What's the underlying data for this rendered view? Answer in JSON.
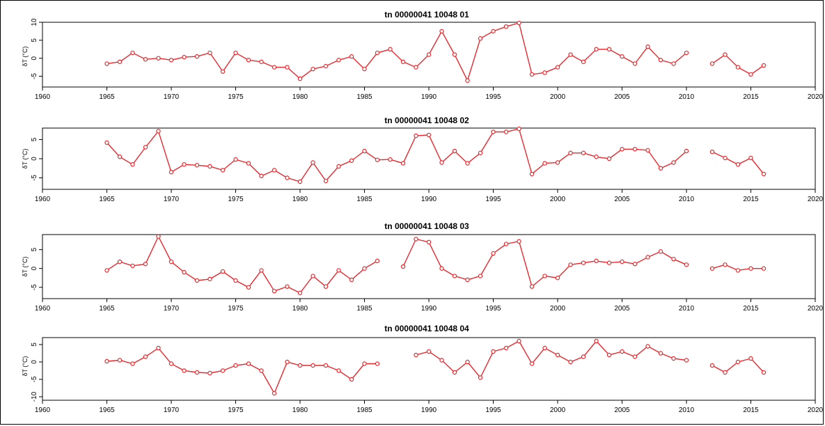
{
  "chart_data": [
    {
      "type": "line",
      "title": "tn 00000041 10048 01",
      "ylabel": "δT (°C)",
      "xlim": [
        1960,
        2020
      ],
      "ylim": [
        -8,
        10
      ],
      "xticks": [
        "1960",
        "1965",
        "1970",
        "1975",
        "1980",
        "1985",
        "1990",
        "1995",
        "2000",
        "2005",
        "2010",
        "2015",
        "2020"
      ],
      "yticks": [
        "-5",
        "0",
        "5",
        "10"
      ],
      "series": [
        {
          "x": [
            1965,
            1966,
            1967,
            1968,
            1969,
            1970,
            1971,
            1972,
            1973,
            1974,
            1975,
            1976,
            1977,
            1978,
            1979,
            1980,
            1981,
            1982,
            1983,
            1984,
            1985,
            1986,
            1987,
            1988,
            1989,
            1990,
            1991,
            1992,
            1993,
            1994,
            1995,
            1996,
            1997,
            1998,
            1999,
            2000,
            2001,
            2002,
            2003,
            2004,
            2005,
            2006,
            2007,
            2008,
            2009,
            2010
          ],
          "y": [
            -1.5,
            -1,
            1.5,
            -0.3,
            0,
            -0.5,
            0.3,
            0.5,
            1.5,
            -3.7,
            1.5,
            -0.5,
            -1,
            -2.5,
            -2.5,
            -5.7,
            -3,
            -2.2,
            -0.5,
            0.5,
            -3,
            1.5,
            2.5,
            -1,
            -2.5,
            1,
            7.5,
            1,
            -6.2,
            5.5,
            7.5,
            8.8,
            9.8,
            -4.5,
            -4,
            -2.5,
            1,
            -1,
            2.5,
            2.5,
            0.5,
            -1.5,
            3.2,
            -0.5,
            -1.5,
            1.5
          ]
        },
        {
          "x": [
            2012,
            2013,
            2014,
            2015,
            2016
          ],
          "y": [
            -1.5,
            1,
            -2.5,
            -4.5,
            -2
          ]
        }
      ]
    },
    {
      "type": "line",
      "title": "tn 00000041 10048 02",
      "ylabel": "δT (°C)",
      "xlim": [
        1960,
        2020
      ],
      "ylim": [
        -8,
        8
      ],
      "xticks": [
        "1960",
        "1965",
        "1970",
        "1975",
        "1980",
        "1985",
        "1990",
        "1995",
        "2000",
        "2005",
        "2010",
        "2015",
        "2020"
      ],
      "yticks": [
        "-5",
        "0",
        "5"
      ],
      "series": [
        {
          "x": [
            1965,
            1966,
            1967,
            1968,
            1969,
            1970,
            1971,
            1972,
            1973,
            1974,
            1975,
            1976,
            1977,
            1978,
            1979,
            1980,
            1981,
            1982,
            1983,
            1984,
            1985,
            1986,
            1987,
            1988,
            1989,
            1990,
            1991,
            1992,
            1993,
            1994,
            1995,
            1996,
            1997,
            1998,
            1999,
            2000,
            2001,
            2002,
            2003,
            2004,
            2005,
            2006,
            2007,
            2008,
            2009,
            2010
          ],
          "y": [
            4.2,
            0.5,
            -1.5,
            3,
            7.2,
            -3.5,
            -1.5,
            -1.7,
            -2,
            -3,
            -0.2,
            -1.2,
            -4.5,
            -3,
            -5,
            -6,
            -1,
            -5.8,
            -2,
            -0.5,
            2,
            -0.3,
            -0.2,
            -1.2,
            6,
            6.2,
            -1,
            2,
            -1.2,
            1.5,
            7,
            7,
            7.8,
            -4,
            -1.2,
            -1,
            1.5,
            1.5,
            0.5,
            0,
            2.5,
            2.5,
            2.2,
            -2.5,
            -1,
            2
          ]
        },
        {
          "x": [
            2012,
            2013,
            2014,
            2015,
            2016
          ],
          "y": [
            1.8,
            0.2,
            -1.5,
            0.2,
            -4
          ]
        }
      ]
    },
    {
      "type": "line",
      "title": "tn 00000041 10048 03",
      "ylabel": "δT (°C)",
      "xlim": [
        1960,
        2020
      ],
      "ylim": [
        -8,
        9
      ],
      "xticks": [
        "1960",
        "1965",
        "1970",
        "1975",
        "1980",
        "1985",
        "1990",
        "1995",
        "2000",
        "2005",
        "2010",
        "2015",
        "2020"
      ],
      "yticks": [
        "-5",
        "0",
        "5"
      ],
      "series": [
        {
          "x": [
            1965,
            1966,
            1967,
            1968,
            1969,
            1970,
            1971,
            1972,
            1973,
            1974,
            1975,
            1976,
            1977,
            1978,
            1979,
            1980,
            1981,
            1982,
            1983,
            1984,
            1985,
            1986
          ],
          "y": [
            -0.5,
            1.8,
            0.7,
            1.2,
            8.5,
            1.8,
            -1,
            -3.2,
            -2.8,
            -0.8,
            -3.2,
            -5,
            -0.5,
            -6,
            -4.8,
            -6.5,
            -2,
            -4.8,
            -0.5,
            -3,
            0,
            2
          ]
        },
        {
          "x": [
            1988,
            1989,
            1990,
            1991,
            1992,
            1993,
            1994,
            1995,
            1996,
            1997,
            1998,
            1999,
            2000,
            2001,
            2002,
            2003,
            2004,
            2005,
            2006,
            2007,
            2008,
            2009,
            2010
          ],
          "y": [
            0.5,
            7.8,
            7,
            0,
            -2,
            -3,
            -2,
            4,
            6.5,
            7.2,
            -4.8,
            -2,
            -2.5,
            1,
            1.5,
            2,
            1.5,
            1.8,
            1.2,
            3,
            4.5,
            2.5,
            1
          ]
        },
        {
          "x": [
            2012,
            2013,
            2014,
            2015,
            2016
          ],
          "y": [
            0,
            1,
            -0.5,
            0,
            0
          ]
        }
      ]
    },
    {
      "type": "line",
      "title": "tn 00000041 10048 04",
      "ylabel": "δT (°C)",
      "xlim": [
        1960,
        2020
      ],
      "ylim": [
        -11,
        7
      ],
      "xticks": [
        "1960",
        "1965",
        "1970",
        "1975",
        "1980",
        "1985",
        "1990",
        "1995",
        "2000",
        "2005",
        "2010",
        "2015",
        "2020"
      ],
      "yticks": [
        "-10",
        "-5",
        "0",
        "5"
      ],
      "series": [
        {
          "x": [
            1965,
            1966,
            1967,
            1968,
            1969,
            1970,
            1971,
            1972,
            1973,
            1974,
            1975,
            1976,
            1977,
            1978,
            1979,
            1980,
            1981,
            1982,
            1983,
            1984,
            1985,
            1986
          ],
          "y": [
            0.2,
            0.5,
            -0.5,
            1.5,
            4,
            -0.5,
            -2.5,
            -3,
            -3.2,
            -2.5,
            -1,
            -0.5,
            -2.5,
            -9,
            0,
            -1,
            -1,
            -1,
            -2.5,
            -5,
            -0.5,
            -0.5
          ]
        },
        {
          "x": [
            1989,
            1990,
            1991,
            1992,
            1993,
            1994,
            1995,
            1996,
            1997,
            1998,
            1999,
            2000,
            2001,
            2002,
            2003,
            2004,
            2005,
            2006,
            2007,
            2008,
            2009,
            2010
          ],
          "y": [
            2,
            3,
            0.5,
            -3,
            0,
            -4.5,
            3,
            4,
            6,
            -0.5,
            4,
            2,
            0,
            1.5,
            6,
            2,
            3,
            1.5,
            4.5,
            2.5,
            1,
            0.5
          ]
        },
        {
          "x": [
            2012,
            2013,
            2014,
            2015,
            2016
          ],
          "y": [
            -1,
            -3,
            0,
            1,
            -3
          ]
        }
      ]
    }
  ]
}
